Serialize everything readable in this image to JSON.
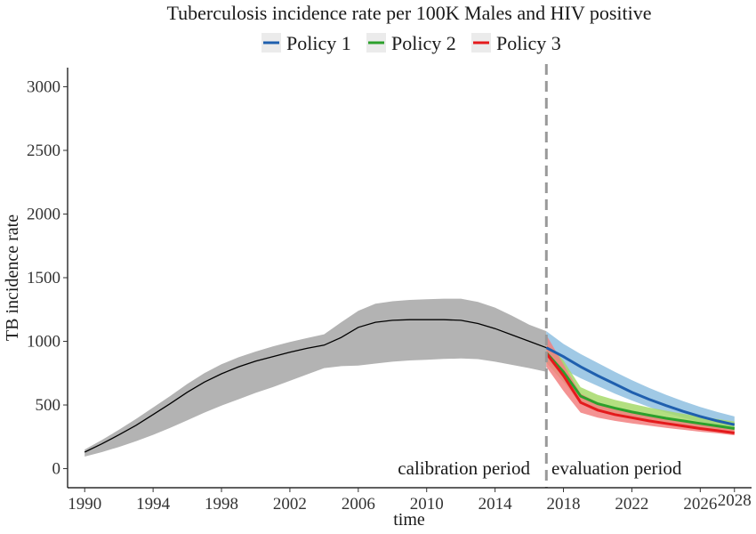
{
  "chart_data": {
    "type": "line",
    "title": "Tuberculosis incidence rate per 100K Males and HIV positive",
    "xlabel": "time",
    "ylabel": "TB incidence rate",
    "xlim": [
      1989,
      2029
    ],
    "ylim": [
      -150,
      3150
    ],
    "xticks": [
      1990,
      1994,
      1998,
      2002,
      2006,
      2010,
      2014,
      2018,
      2022,
      2026,
      2028
    ],
    "yticks": [
      0,
      500,
      1000,
      1500,
      2000,
      2500,
      3000
    ],
    "legend_position": "top",
    "grid": false,
    "calibration": {
      "x": [
        1990,
        1991,
        1992,
        1993,
        1994,
        1995,
        1996,
        1997,
        1998,
        1999,
        2000,
        2001,
        2002,
        2003,
        2004,
        2005,
        2006,
        2007,
        2008,
        2009,
        2010,
        2011,
        2012,
        2013,
        2014,
        2015,
        2016,
        2017
      ],
      "mean": [
        130,
        195,
        265,
        340,
        425,
        510,
        600,
        680,
        745,
        800,
        845,
        880,
        915,
        945,
        970,
        1030,
        1110,
        1150,
        1165,
        1170,
        1170,
        1170,
        1165,
        1140,
        1100,
        1050,
        1000,
        950
      ],
      "lower": [
        95,
        130,
        170,
        215,
        265,
        320,
        380,
        440,
        495,
        545,
        595,
        640,
        690,
        740,
        790,
        805,
        810,
        825,
        840,
        850,
        855,
        862,
        865,
        860,
        840,
        815,
        790,
        760
      ],
      "upper": [
        150,
        225,
        305,
        390,
        480,
        570,
        665,
        750,
        820,
        875,
        920,
        960,
        995,
        1025,
        1055,
        1150,
        1240,
        1295,
        1315,
        1325,
        1330,
        1335,
        1335,
        1310,
        1265,
        1200,
        1130,
        1080
      ],
      "color": "#000000",
      "band_color": "#b3b3b3"
    },
    "series": [
      {
        "name": "Policy 1",
        "color": "#1f5fae",
        "band_color": "#8fbfe0",
        "x": [
          2017,
          2018,
          2019,
          2020,
          2021,
          2022,
          2023,
          2024,
          2025,
          2026,
          2027,
          2028
        ],
        "values": [
          950,
          880,
          800,
          730,
          665,
          600,
          545,
          495,
          450,
          410,
          375,
          345
        ],
        "lower": [
          830,
          780,
          710,
          650,
          590,
          535,
          485,
          440,
          400,
          365,
          335,
          310
        ],
        "upper": [
          1080,
          980,
          900,
          830,
          760,
          695,
          635,
          580,
          530,
          485,
          445,
          410
        ]
      },
      {
        "name": "Policy 2",
        "color": "#2ca02c",
        "band_color": "#a6d96a",
        "x": [
          2017,
          2018,
          2019,
          2020,
          2021,
          2022,
          2023,
          2024,
          2025,
          2026,
          2027,
          2028
        ],
        "values": [
          910,
          760,
          570,
          510,
          475,
          445,
          420,
          395,
          375,
          355,
          335,
          315
        ],
        "lower": [
          830,
          680,
          510,
          455,
          425,
          400,
          378,
          358,
          340,
          323,
          307,
          292
        ],
        "upper": [
          990,
          850,
          640,
          580,
          540,
          510,
          480,
          455,
          430,
          410,
          390,
          370
        ]
      },
      {
        "name": "Policy 3",
        "color": "#e41a1c",
        "band_color": "#f28080",
        "x": [
          2017,
          2018,
          2019,
          2020,
          2021,
          2022,
          2023,
          2024,
          2025,
          2026,
          2027,
          2028
        ],
        "values": [
          905,
          730,
          520,
          460,
          425,
          400,
          375,
          355,
          335,
          315,
          298,
          280
        ],
        "lower": [
          800,
          610,
          440,
          400,
          375,
          355,
          337,
          320,
          305,
          290,
          277,
          262
        ],
        "upper": [
          1050,
          820,
          590,
          520,
          485,
          455,
          430,
          405,
          382,
          360,
          340,
          320
        ]
      }
    ],
    "cutoff": {
      "x": 2017,
      "color": "#999999"
    },
    "annotations": {
      "left": "calibration period",
      "right": "evaluation period"
    }
  }
}
